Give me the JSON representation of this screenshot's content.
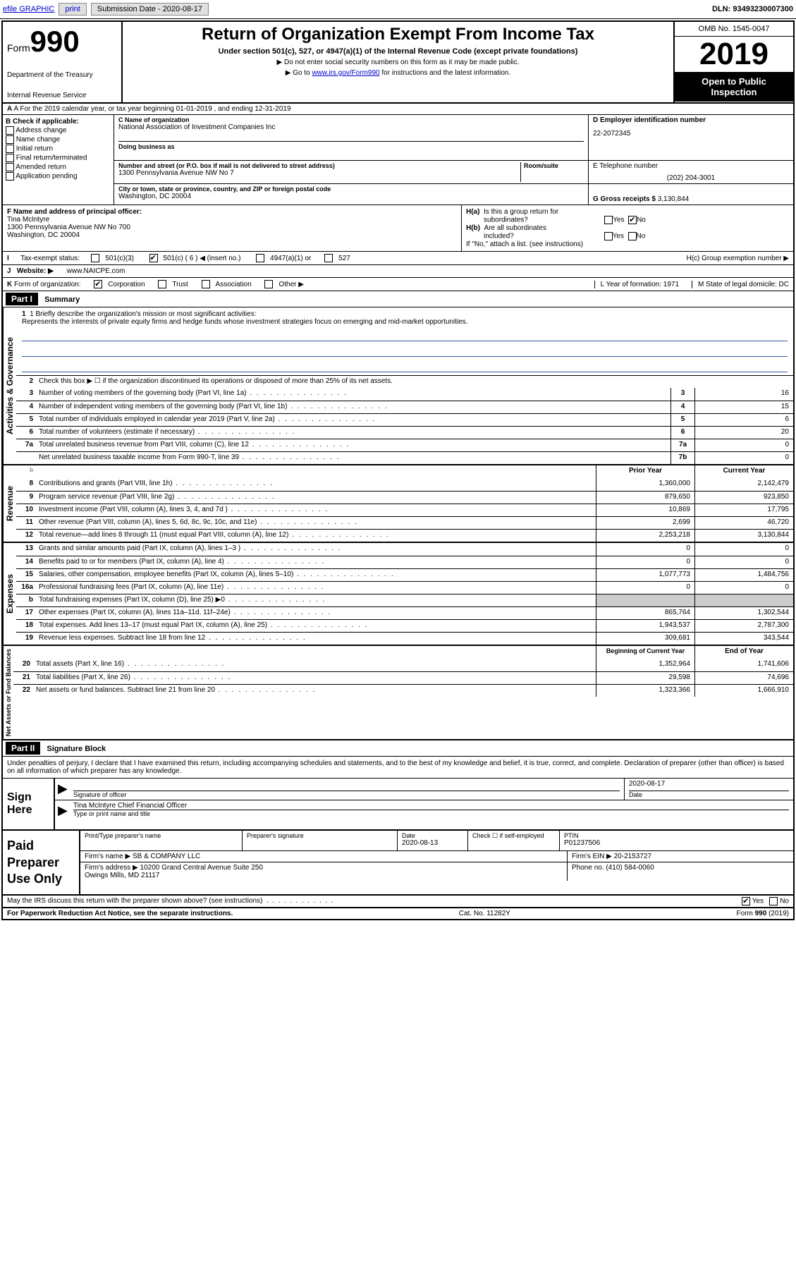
{
  "topbar": {
    "efile": "efile GRAPHIC",
    "print": "print",
    "subdate_lbl": "Submission Date - 2020-08-17",
    "dln": "DLN: 93493230007300"
  },
  "header": {
    "form": "Form",
    "form_no": "990",
    "dept": "Department of the Treasury",
    "irs": "Internal Revenue Service",
    "title": "Return of Organization Exempt From Income Tax",
    "sub1": "Under section 501(c), 527, or 4947(a)(1) of the Internal Revenue Code (except private foundations)",
    "sub2": "Do not enter social security numbers on this form as it may be made public.",
    "sub3_pre": "Go to ",
    "sub3_link": "www.irs.gov/Form990",
    "sub3_post": " for instructions and the latest information.",
    "omb": "OMB No. 1545-0047",
    "year": "2019",
    "open": "Open to Public Inspection"
  },
  "rowA": "A For the 2019 calendar year, or tax year beginning 01-01-2019    , and ending 12-31-2019",
  "colB": {
    "hdr": "B Check if applicable:",
    "opts": [
      "Address change",
      "Name change",
      "Initial return",
      "Final return/terminated",
      "Amended return",
      "Application pending"
    ]
  },
  "colC": {
    "name_lbl": "C Name of organization",
    "name": "National Association of Investment Companies Inc",
    "dba_lbl": "Doing business as",
    "dba": "",
    "addr_lbl": "Number and street (or P.O. box if mail is not delivered to street address)",
    "room_lbl": "Room/suite",
    "addr": "1300 Pennsylvania Avenue NW No 7",
    "city_lbl": "City or town, state or province, country, and ZIP or foreign postal code",
    "city": "Washington, DC  20004"
  },
  "colD": {
    "ein_lbl": "D Employer identification number",
    "ein": "22-2072345",
    "tel_lbl": "E Telephone number",
    "tel": "(202) 204-3001",
    "gross_lbl": "G Gross receipts $",
    "gross": "3,130,844"
  },
  "rowF": {
    "lbl": "F  Name and address of principal officer:",
    "name": "Tina McIntyre",
    "addr1": "1300 Pennsylvania Avenue NW No 700",
    "addr2": "Washington, DC  20004"
  },
  "rowH": {
    "ha": "H(a)  Is this a group return for subordinates?",
    "ha_ans_yes": "Yes",
    "ha_ans_no": "No",
    "hb": "H(b)  Are all subordinates included?",
    "hb_note": "If \"No,\" attach a list. (see instructions)",
    "hc": "H(c)  Group exemption number ▶"
  },
  "rowI": {
    "lbl": "I   Tax-exempt status:",
    "o1": "501(c)(3)",
    "o2": "501(c) ( 6 ) ◀ (insert no.)",
    "o3": "4947(a)(1) or",
    "o4": "527"
  },
  "rowJ": {
    "lbl": "J   Website: ▶",
    "val": "www.NAICPE.com"
  },
  "rowK": {
    "lbl": "K Form of organization:",
    "opts": [
      "Corporation",
      "Trust",
      "Association",
      "Other ▶"
    ],
    "L": "L Year of formation: 1971",
    "M": "M State of legal domicile: DC"
  },
  "part1": {
    "hdr": "Part I",
    "title": "Summary",
    "l1_lbl": "1  Briefly describe the organization's mission or most significant activities:",
    "l1_txt": "Represents the interests of private equity firms and hedge funds whose investment strategies focus on emerging and mid-market opportunities.",
    "l2": "Check this box ▶ ☐  if the organization discontinued its operations or disposed of more than 25% of its net assets.",
    "lines_gov": [
      {
        "n": "3",
        "t": "Number of voting members of the governing body (Part VI, line 1a)",
        "b": "3",
        "v": "16"
      },
      {
        "n": "4",
        "t": "Number of independent voting members of the governing body (Part VI, line 1b)",
        "b": "4",
        "v": "15"
      },
      {
        "n": "5",
        "t": "Total number of individuals employed in calendar year 2019 (Part V, line 2a)",
        "b": "5",
        "v": "6"
      },
      {
        "n": "6",
        "t": "Total number of volunteers (estimate if necessary)",
        "b": "6",
        "v": "20"
      },
      {
        "n": "7a",
        "t": "Total unrelated business revenue from Part VIII, column (C), line 12",
        "b": "7a",
        "v": "0"
      },
      {
        "n": "",
        "t": "Net unrelated business taxable income from Form 990-T, line 39",
        "b": "7b",
        "v": "0"
      }
    ],
    "col_py": "Prior Year",
    "col_cy": "Current Year",
    "lines_rev": [
      {
        "n": "8",
        "t": "Contributions and grants (Part VIII, line 1h)",
        "py": "1,360,000",
        "cy": "2,142,479"
      },
      {
        "n": "9",
        "t": "Program service revenue (Part VIII, line 2g)",
        "py": "879,650",
        "cy": "923,850"
      },
      {
        "n": "10",
        "t": "Investment income (Part VIII, column (A), lines 3, 4, and 7d )",
        "py": "10,869",
        "cy": "17,795"
      },
      {
        "n": "11",
        "t": "Other revenue (Part VIII, column (A), lines 5, 6d, 8c, 9c, 10c, and 11e)",
        "py": "2,699",
        "cy": "46,720"
      },
      {
        "n": "12",
        "t": "Total revenue—add lines 8 through 11 (must equal Part VIII, column (A), line 12)",
        "py": "2,253,218",
        "cy": "3,130,844"
      }
    ],
    "lines_exp": [
      {
        "n": "13",
        "t": "Grants and similar amounts paid (Part IX, column (A), lines 1–3 )",
        "py": "0",
        "cy": "0"
      },
      {
        "n": "14",
        "t": "Benefits paid to or for members (Part IX, column (A), line 4)",
        "py": "0",
        "cy": "0"
      },
      {
        "n": "15",
        "t": "Salaries, other compensation, employee benefits (Part IX, column (A), lines 5–10)",
        "py": "1,077,773",
        "cy": "1,484,756"
      },
      {
        "n": "16a",
        "t": "Professional fundraising fees (Part IX, column (A), line 11e)",
        "py": "0",
        "cy": "0"
      },
      {
        "n": "b",
        "t": "Total fundraising expenses (Part IX, column (D), line 25) ▶0",
        "py": "",
        "cy": "",
        "shaded": true
      },
      {
        "n": "17",
        "t": "Other expenses (Part IX, column (A), lines 11a–11d, 11f–24e)",
        "py": "865,764",
        "cy": "1,302,544"
      },
      {
        "n": "18",
        "t": "Total expenses. Add lines 13–17 (must equal Part IX, column (A), line 25)",
        "py": "1,943,537",
        "cy": "2,787,300"
      },
      {
        "n": "19",
        "t": "Revenue less expenses. Subtract line 18 from line 12",
        "py": "309,681",
        "cy": "343,544"
      }
    ],
    "col_bcy": "Beginning of Current Year",
    "col_eoy": "End of Year",
    "lines_net": [
      {
        "n": "20",
        "t": "Total assets (Part X, line 16)",
        "py": "1,352,964",
        "cy": "1,741,606"
      },
      {
        "n": "21",
        "t": "Total liabilities (Part X, line 26)",
        "py": "29,598",
        "cy": "74,696"
      },
      {
        "n": "22",
        "t": "Net assets or fund balances. Subtract line 21 from line 20",
        "py": "1,323,366",
        "cy": "1,666,910"
      }
    ],
    "sec_gov": "Activities & Governance",
    "sec_rev": "Revenue",
    "sec_exp": "Expenses",
    "sec_net": "Net Assets or Fund Balances",
    "b_tiny": "b"
  },
  "part2": {
    "hdr": "Part II",
    "title": "Signature Block",
    "decl": "Under penalties of perjury, I declare that I have examined this return, including accompanying schedules and statements, and to the best of my knowledge and belief, it is true, correct, and complete. Declaration of preparer (other than officer) is based on all information of which preparer has any knowledge.",
    "sign": "Sign Here",
    "sig_officer": "Signature of officer",
    "sig_date": "Date",
    "sig_date_v": "2020-08-17",
    "sig_name": "Tina McIntyre  Chief Financial Officer",
    "sig_type": "Type or print name and title",
    "paid": "Paid Preparer Use Only",
    "p_name_lbl": "Print/Type preparer's name",
    "p_sig_lbl": "Preparer's signature",
    "p_date_lbl": "Date",
    "p_date": "2020-08-13",
    "p_check": "Check ☐ if self-employed",
    "p_ptin_lbl": "PTIN",
    "p_ptin": "P01237506",
    "firm_name_lbl": "Firm's name   ▶",
    "firm_name": "SB & COMPANY LLC",
    "firm_ein_lbl": "Firm's EIN ▶",
    "firm_ein": "20-2153727",
    "firm_addr_lbl": "Firm's address ▶",
    "firm_addr": "10200 Grand Central Avenue Suite 250\nOwings Mills, MD  21117",
    "phone_lbl": "Phone no.",
    "phone": "(410) 584-0060"
  },
  "footer": {
    "discuss": "May the IRS discuss this return with the preparer shown above? (see instructions)",
    "yes": "Yes",
    "no": "No",
    "pra": "For Paperwork Reduction Act Notice, see the separate instructions.",
    "cat": "Cat. No. 11282Y",
    "form": "Form 990 (2019)"
  }
}
